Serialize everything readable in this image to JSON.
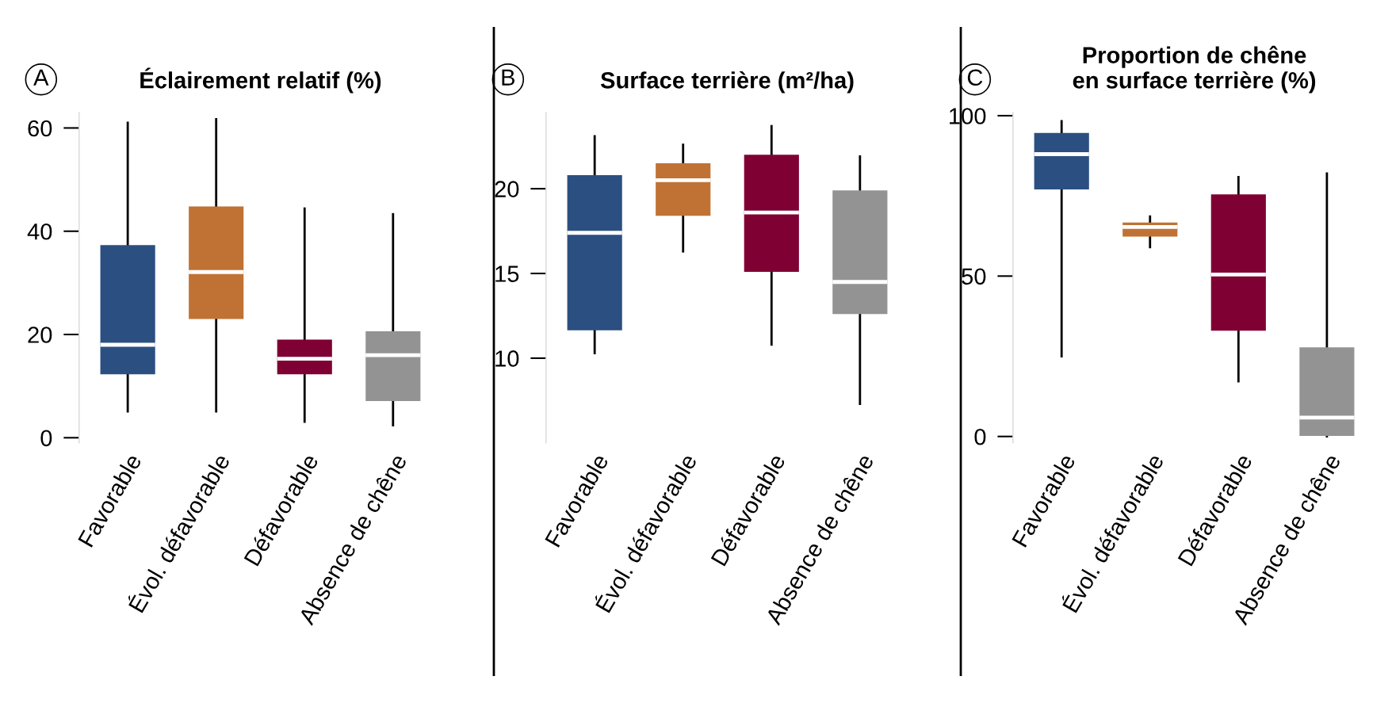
{
  "chart_data": [
    {
      "type": "box",
      "title": "Éclairement relatif (%)",
      "annotations": [
        "A"
      ],
      "categories": [
        "Favorable",
        "Évol. défavorable",
        "Défavorable",
        "Absence de chêne"
      ],
      "colors": [
        "#2b4f81",
        "#c07234",
        "#7f0033",
        "#939393"
      ],
      "ylim": [
        -1,
        63
      ],
      "yticks": [
        0,
        20,
        40,
        60
      ],
      "grid": false,
      "boxes": [
        {
          "low": 5.1,
          "q1": 12.3,
          "median": 18,
          "q3": 37.3,
          "high": 61
        },
        {
          "low": 5.1,
          "q1": 23,
          "median": 32.1,
          "q3": 44.8,
          "high": 61.7
        },
        {
          "low": 3.1,
          "q1": 12.3,
          "median": 15.3,
          "q3": 19,
          "high": 44.4
        },
        {
          "low": 2.4,
          "q1": 7.1,
          "median": 16,
          "q3": 20.6,
          "high": 43.3
        }
      ]
    },
    {
      "type": "box",
      "title": "Surface terrière (m²/ha)",
      "annotations": [
        "B"
      ],
      "categories": [
        "Favorable",
        "Évol. défavorable",
        "Défavorable",
        "Absence de chêne"
      ],
      "colors": [
        "#2b4f81",
        "#c07234",
        "#7f0033",
        "#939393"
      ],
      "ylim": [
        5,
        24.5
      ],
      "yticks": [
        10,
        15,
        20
      ],
      "grid": false,
      "boxes": [
        {
          "low": 10.3,
          "q1": 11.65,
          "median": 17.4,
          "q3": 20.8,
          "high": 23.1
        },
        {
          "low": 16.3,
          "q1": 18.4,
          "median": 20.5,
          "q3": 21.5,
          "high": 22.6
        },
        {
          "low": 10.8,
          "q1": 15.1,
          "median": 18.6,
          "q3": 22,
          "high": 23.7
        },
        {
          "low": 7.3,
          "q1": 12.6,
          "median": 14.5,
          "q3": 19.9,
          "high": 21.9
        }
      ]
    },
    {
      "type": "box",
      "title": "Proportion de chêne\nen surface terrière (%)",
      "annotations": [
        "C"
      ],
      "categories": [
        "Favorable",
        "Évol. défavorable",
        "Défavorable",
        "Absence de chêne"
      ],
      "colors": [
        "#2b4f81",
        "#c07234",
        "#7f0033",
        "#939393"
      ],
      "ylim": [
        -2,
        101
      ],
      "yticks": [
        0,
        50,
        100
      ],
      "grid": false,
      "boxes": [
        {
          "low": 25,
          "q1": 77,
          "median": 88,
          "q3": 94.6,
          "high": 98.3
        },
        {
          "low": 59,
          "q1": 62.3,
          "median": 65.3,
          "q3": 66.7,
          "high": 68.6
        },
        {
          "low": 17.2,
          "q1": 33,
          "median": 50.5,
          "q3": 75.5,
          "high": 80.9
        },
        {
          "low": 0,
          "q1": 0.2,
          "median": 5.9,
          "q3": 27.8,
          "high": 82
        }
      ]
    }
  ]
}
